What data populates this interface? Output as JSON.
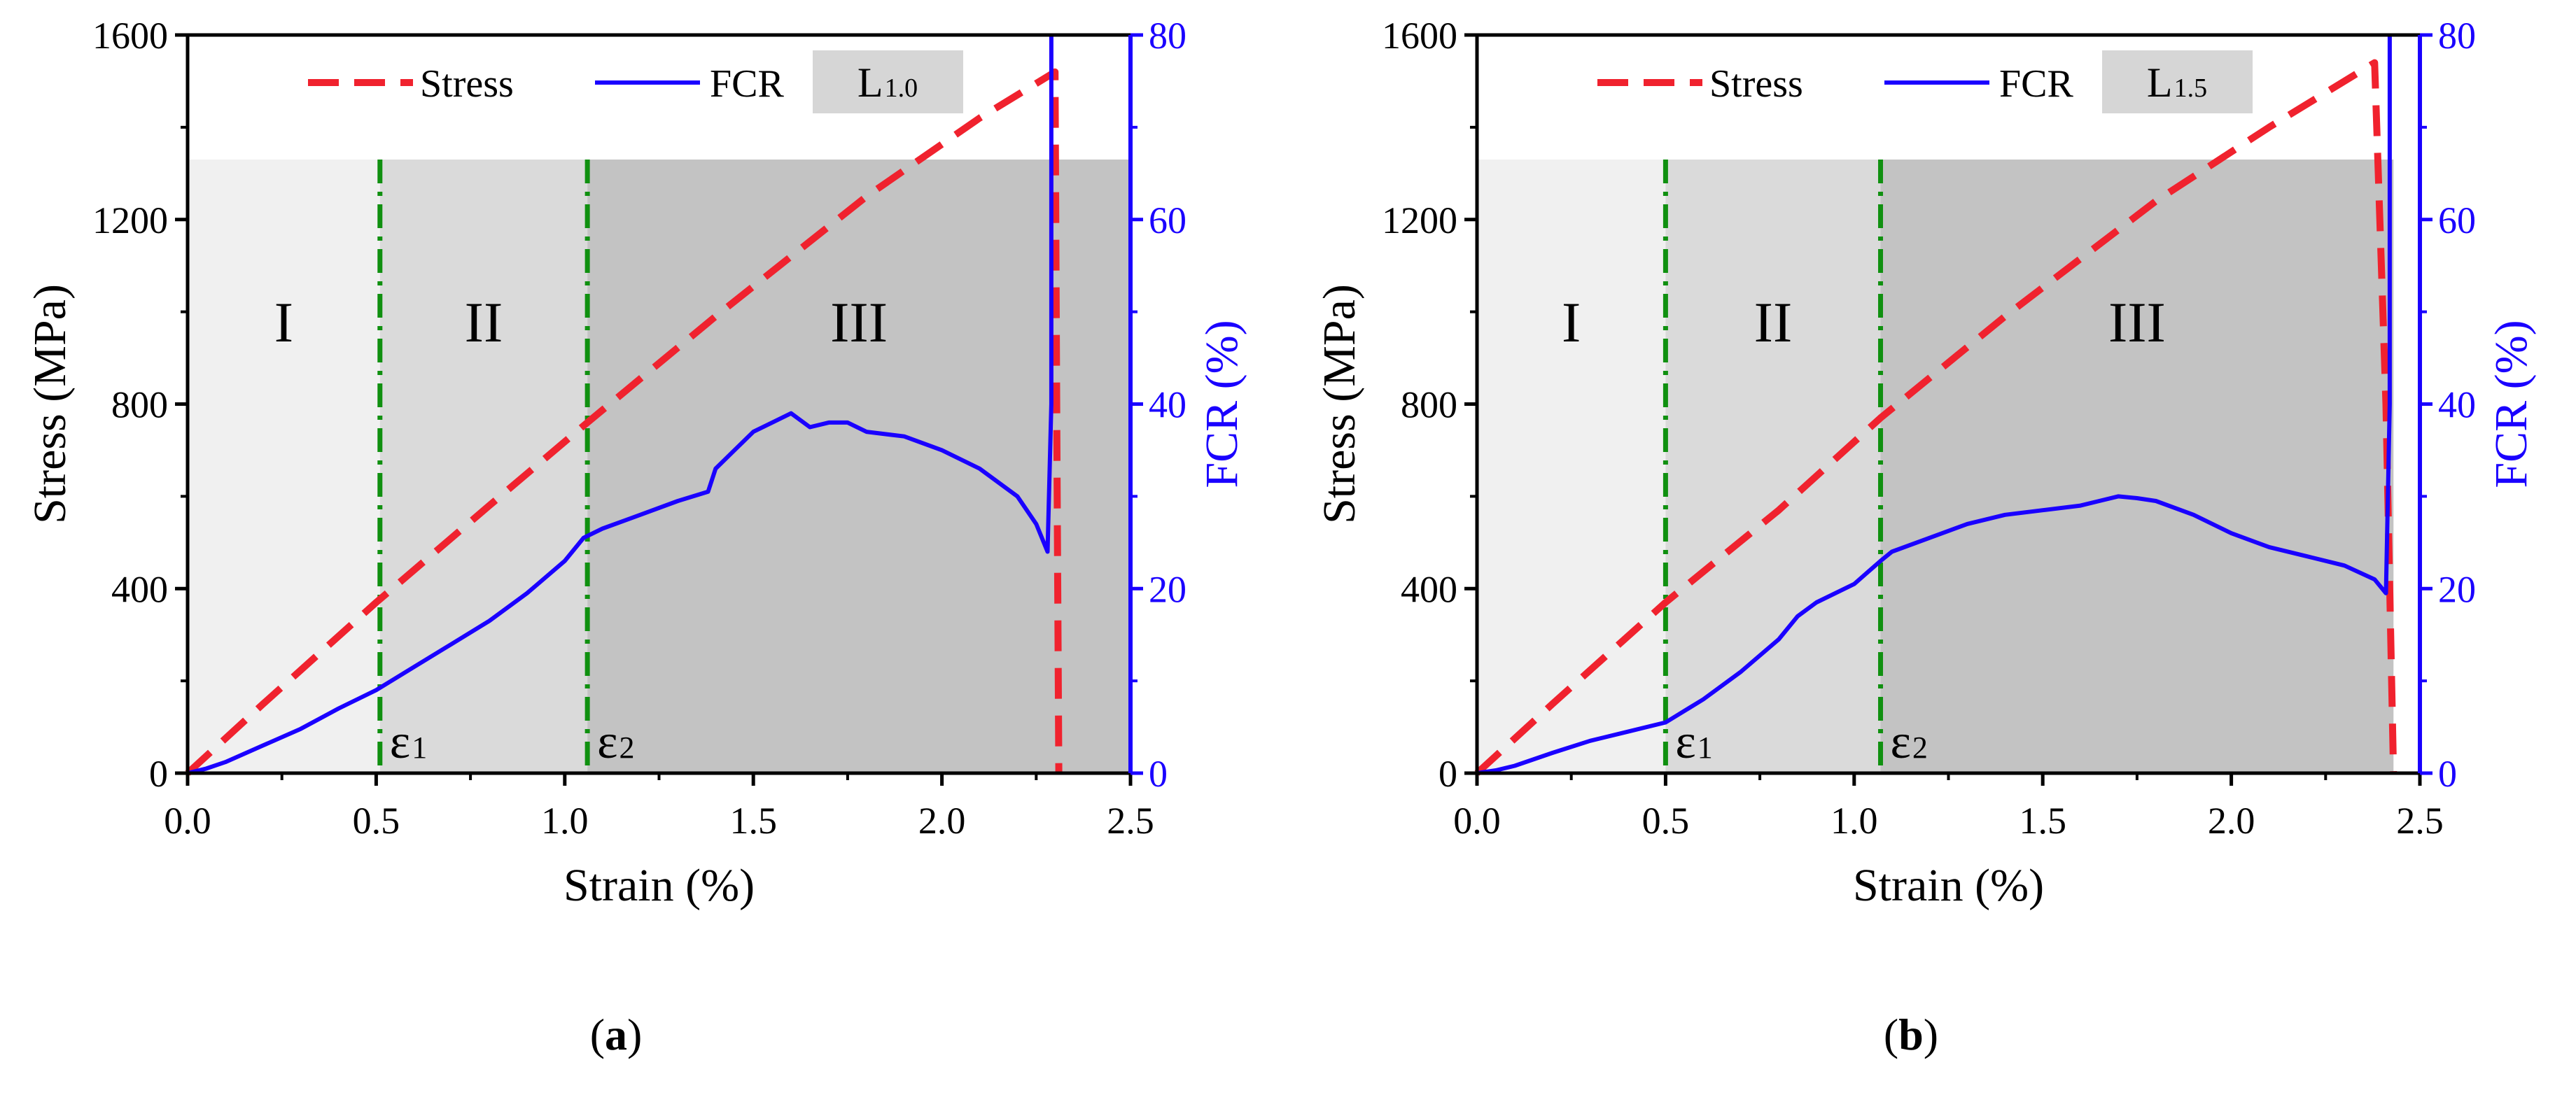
{
  "colors": {
    "stress": "#f0222e",
    "fcr": "#1a00ff",
    "boundary": "#109010",
    "region1": "#f0f0f0",
    "region2": "#dadada",
    "region3": "#c3c3c3",
    "badge": "#d6d6d6"
  },
  "legend": {
    "stress": "Stress",
    "fcr": "FCR"
  },
  "chart_data": [
    {
      "type": "line",
      "panel_label": "(a)",
      "panel_letter": "a",
      "badge": {
        "main": "L",
        "sub": "1.0"
      },
      "xlabel": "Strain (%)",
      "ylabel": "Stress (MPa)",
      "y2label": "FCR (%)",
      "xlim": [
        0,
        2.5
      ],
      "ylim": [
        0,
        1600
      ],
      "y2lim": [
        0,
        80
      ],
      "xticks": [
        "0.0",
        "0.5",
        "1.0",
        "1.5",
        "2.0",
        "2.5"
      ],
      "yticks": [
        "0",
        "400",
        "800",
        "1200",
        "1600"
      ],
      "y2ticks": [
        "0",
        "20",
        "40",
        "60",
        "80"
      ],
      "region_top": 1330,
      "regions": [
        {
          "label": "I",
          "from": 0,
          "to": 0.51
        },
        {
          "label": "II",
          "from": 0.51,
          "to": 1.06
        },
        {
          "label": "III",
          "from": 1.06,
          "to": 2.5
        }
      ],
      "boundaries": [
        {
          "main": "ε",
          "sub": "1",
          "x": 0.51
        },
        {
          "main": "ε",
          "sub": "2",
          "x": 1.06
        }
      ],
      "series": [
        {
          "name": "Stress",
          "axis": "left",
          "x": [
            0,
            0.2,
            0.5,
            0.8,
            1.06,
            1.4,
            1.8,
            2.1,
            2.3,
            2.305,
            2.31
          ],
          "y": [
            0,
            150,
            370,
            580,
            760,
            990,
            1250,
            1420,
            1520,
            700,
            0
          ]
        },
        {
          "name": "FCR",
          "axis": "right",
          "x": [
            0,
            0.05,
            0.1,
            0.2,
            0.3,
            0.4,
            0.5,
            0.6,
            0.7,
            0.8,
            0.9,
            1.0,
            1.05,
            1.1,
            1.2,
            1.3,
            1.38,
            1.4,
            1.45,
            1.5,
            1.55,
            1.6,
            1.65,
            1.7,
            1.75,
            1.8,
            1.9,
            2.0,
            2.1,
            2.2,
            2.25,
            2.28,
            2.29,
            2.29
          ],
          "y": [
            0,
            0.5,
            1.2,
            3.0,
            4.8,
            7.0,
            9.0,
            11.5,
            14.0,
            16.5,
            19.5,
            23.0,
            25.5,
            26.5,
            28.0,
            29.5,
            30.5,
            33.0,
            35.0,
            37.0,
            38.0,
            39.0,
            37.5,
            38.0,
            38.0,
            37.0,
            36.5,
            35.0,
            33.0,
            30.0,
            27.0,
            24.0,
            40.0,
            80.0
          ]
        }
      ]
    },
    {
      "type": "line",
      "panel_label": "(b)",
      "panel_letter": "b",
      "badge": {
        "main": "L",
        "sub": "1.5"
      },
      "xlabel": "Strain (%)",
      "ylabel": "Stress (MPa)",
      "y2label": "FCR (%)",
      "xlim": [
        0,
        2.5
      ],
      "ylim": [
        0,
        1600
      ],
      "y2lim": [
        0,
        80
      ],
      "xticks": [
        "0.0",
        "0.5",
        "1.0",
        "1.5",
        "2.0",
        "2.5"
      ],
      "yticks": [
        "0",
        "400",
        "800",
        "1200",
        "1600"
      ],
      "y2ticks": [
        "0",
        "20",
        "40",
        "60",
        "80"
      ],
      "region_top": 1330,
      "regions": [
        {
          "label": "I",
          "from": 0,
          "to": 0.5
        },
        {
          "label": "II",
          "from": 0.5,
          "to": 1.07
        },
        {
          "label": "III",
          "from": 1.07,
          "to": 2.43
        }
      ],
      "boundaries": [
        {
          "main": "ε",
          "sub": "1",
          "x": 0.5
        },
        {
          "main": "ε",
          "sub": "2",
          "x": 1.07
        }
      ],
      "series": [
        {
          "name": "Stress",
          "axis": "left",
          "x": [
            0,
            0.2,
            0.5,
            0.8,
            1.07,
            1.4,
            1.8,
            2.1,
            2.38,
            2.41,
            2.43
          ],
          "y": [
            0,
            150,
            370,
            570,
            770,
            990,
            1240,
            1400,
            1540,
            800,
            0
          ]
        },
        {
          "name": "FCR",
          "axis": "right",
          "x": [
            0,
            0.05,
            0.1,
            0.2,
            0.3,
            0.4,
            0.5,
            0.6,
            0.7,
            0.8,
            0.85,
            0.9,
            1.0,
            1.07,
            1.1,
            1.2,
            1.3,
            1.4,
            1.5,
            1.6,
            1.65,
            1.7,
            1.75,
            1.8,
            1.9,
            2.0,
            2.1,
            2.2,
            2.3,
            2.38,
            2.41,
            2.42,
            2.42
          ],
          "y": [
            0,
            0.3,
            0.8,
            2.2,
            3.5,
            4.5,
            5.5,
            8.0,
            11.0,
            14.5,
            17.0,
            18.5,
            20.5,
            23.0,
            24.0,
            25.5,
            27.0,
            28.0,
            28.5,
            29.0,
            29.5,
            30.0,
            29.8,
            29.5,
            28.0,
            26.0,
            24.5,
            23.5,
            22.5,
            21.0,
            19.5,
            40.0,
            80.0
          ]
        }
      ]
    }
  ]
}
